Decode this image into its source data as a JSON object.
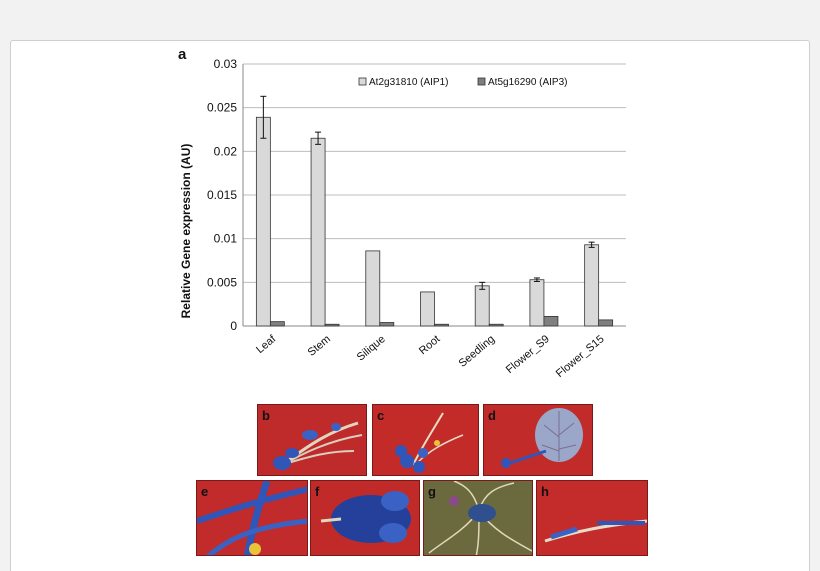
{
  "figure": {
    "panel_a_label": "a",
    "photo_panels": [
      {
        "label": "b"
      },
      {
        "label": "c"
      },
      {
        "label": "d"
      },
      {
        "label": "e"
      },
      {
        "label": "f"
      },
      {
        "label": "g"
      },
      {
        "label": "h"
      }
    ],
    "colors": {
      "series1": "#d9d9d9",
      "series2": "#7f7f7f",
      "photo_background": "#c0292b",
      "stain_blue": "#2f56b8"
    }
  },
  "chart_data": {
    "type": "bar",
    "title": "",
    "xlabel": "",
    "ylabel": "Relative Gene expression (AU)",
    "ylim": [
      0,
      0.03
    ],
    "yticks": [
      "0",
      "0.005",
      "0.01",
      "0.015",
      "0.02",
      "0.025",
      "0.03"
    ],
    "ytick_values": [
      0,
      0.005,
      0.01,
      0.015,
      0.02,
      0.025,
      0.03
    ],
    "grid": true,
    "legend_position": "top-right",
    "categories": [
      "Leaf",
      "Stem",
      "Silique",
      "Root",
      "Seedling",
      "Flower_S9",
      "Flower_S15"
    ],
    "series": [
      {
        "name": "At2g31810 (AIP1)",
        "values": [
          0.0239,
          0.0215,
          0.0086,
          0.0039,
          0.0046,
          0.0053,
          0.0093
        ],
        "errors": [
          0.0024,
          0.0007,
          0.0,
          0.0,
          0.0004,
          0.0002,
          0.0003
        ]
      },
      {
        "name": "At5g16290 (AIP3)",
        "values": [
          0.0005,
          0.0002,
          0.0004,
          0.0002,
          0.0002,
          0.0011,
          0.0007
        ],
        "errors": [
          0,
          0,
          0,
          0,
          0,
          0,
          0
        ]
      }
    ]
  }
}
